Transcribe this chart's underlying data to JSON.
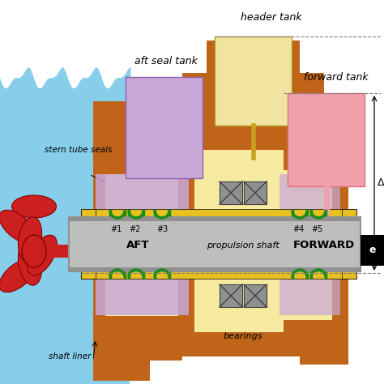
{
  "bg_color": "#ffffff",
  "water_color": "#87CEEB",
  "hull_color": "#C0641A",
  "shaft_color": "#BEBEBE",
  "shaft_border": "#909090",
  "yellow_color": "#E8C020",
  "cream_color": "#F5EAA0",
  "seal_lav_color": "#C8A8D8",
  "bearing_color": "#909090",
  "green_color": "#1A8C1A",
  "header_tank_color": "#F0E4A0",
  "forward_tank_color": "#F0A0A8",
  "aft_seal_tank_color": "#C8A8D8",
  "pink_pipe_color": "#F0A0B0",
  "propeller_color": "#CC2020",
  "figsize": [
    4.74,
    4.74
  ],
  "dpi": 100,
  "labels": {
    "header_tank": "header tank",
    "aft_seal_tank": "aft seal tank",
    "forward_tank": "forward tank",
    "stern_tube_seals": "stern tube seals",
    "shaft_liner": "shaft liner",
    "aft": "AFT",
    "propulsion_shaft": "propulsion shaft",
    "forward": "FORWARD",
    "bearings": "bearings"
  }
}
